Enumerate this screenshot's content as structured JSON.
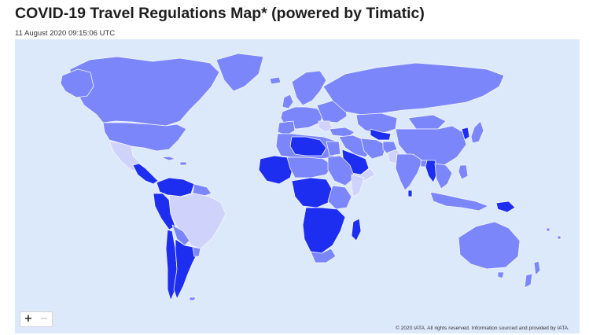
{
  "header": {
    "title": "COVID-19 Travel Regulations Map* (powered by Timatic)",
    "timestamp": "11 August 2020 09:15:06 UTC"
  },
  "map": {
    "colors": {
      "ocean": "#dce9fb",
      "partially_restrictive": "#7b86fb",
      "totally_restrictive": "#1d2ef0",
      "moderately_restrictive": "#cfd3fb",
      "border": "#f4f6ff"
    },
    "controls": {
      "zoom_in": "+",
      "zoom_out": "−"
    },
    "attribution": "© 2020 IATA. All rights reserved. Information sourced and provided by IATA."
  }
}
